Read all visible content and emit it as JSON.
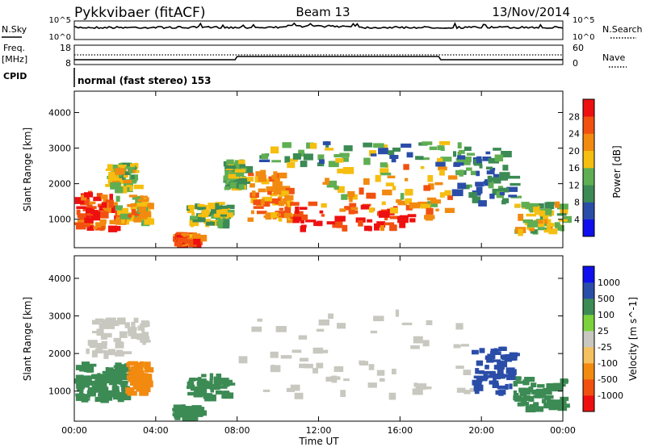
{
  "header": {
    "station": "Pykkvibaer (fitACF)",
    "beam": "Beam 13",
    "date": "13/Nov/2014"
  },
  "noise_panel": {
    "left_label": "N.Sky",
    "left_ticks": [
      "10^5",
      "10^0"
    ],
    "right_label": "N.Search",
    "right_ticks": [
      "10^5",
      "10^0"
    ]
  },
  "freq_panel": {
    "left_label_1": "Freq.",
    "left_label_2": "[MHz]",
    "left_ticks": [
      "18",
      "8"
    ],
    "right_label": "Nave",
    "right_ticks": [
      "60",
      "0"
    ]
  },
  "cpid": {
    "label": "CPID",
    "text": "normal (fast stereo) 153"
  },
  "x_axis": {
    "ticks": [
      "00:00",
      "04:00",
      "08:00",
      "12:00",
      "16:00",
      "20:00",
      "00:00"
    ],
    "label": "Time UT"
  },
  "colors": {
    "power_scale": [
      "#1010ee",
      "#2a4da8",
      "#3c8a54",
      "#5fae52",
      "#f5be10",
      "#f28a10",
      "#f25010",
      "#ee1010"
    ],
    "velocity_scale": [
      "#ee1010",
      "#f25010",
      "#f28a10",
      "#f5c060",
      "#c8c8c0",
      "#7cd23c",
      "#3c8a54",
      "#2a4da8",
      "#1010ee"
    ]
  },
  "chart_data": [
    {
      "type": "heatmap",
      "title": "Power",
      "xlabel": "",
      "ylabel": "Slant Range [km]",
      "ylim": [
        200,
        4600
      ],
      "y_ticks": [
        "4000",
        "3000",
        "2000",
        "1000"
      ],
      "colorbar": {
        "label": "Power [dB]",
        "tick_labels": [
          "28",
          "24",
          "20",
          "16",
          "12",
          "8",
          "4"
        ],
        "range": [
          0,
          32
        ]
      },
      "regions": [
        {
          "t_start": 0.0,
          "t_end": 2.0,
          "r_min": 800,
          "r_max": 1800,
          "power": 26
        },
        {
          "t_start": 2.0,
          "t_end": 3.5,
          "r_min": 1000,
          "r_max": 1700,
          "power": 20
        },
        {
          "t_start": 1.5,
          "t_end": 3.0,
          "r_min": 1900,
          "r_max": 2600,
          "power": 16
        },
        {
          "t_start": 4.8,
          "t_end": 6.0,
          "r_min": 350,
          "r_max": 650,
          "power": 24
        },
        {
          "t_start": 5.5,
          "t_end": 7.5,
          "r_min": 900,
          "r_max": 1500,
          "power": 14
        },
        {
          "t_start": 7.3,
          "t_end": 8.3,
          "r_min": 1900,
          "r_max": 2700,
          "power": 14
        },
        {
          "t_start": 8.5,
          "t_end": 10.5,
          "r_min": 1000,
          "r_max": 2400,
          "power": 22
        },
        {
          "t_start": 10.5,
          "t_end": 17.5,
          "r_min": 800,
          "r_max": 1500,
          "power": 28
        },
        {
          "t_start": 12.0,
          "t_end": 18.5,
          "r_min": 1300,
          "r_max": 2600,
          "power": 20
        },
        {
          "t_start": 9.0,
          "t_end": 19.0,
          "r_min": 2600,
          "r_max": 3200,
          "power": 12
        },
        {
          "t_start": 18.5,
          "t_end": 21.5,
          "r_min": 1500,
          "r_max": 3100,
          "power": 10
        },
        {
          "t_start": 21.5,
          "t_end": 24.0,
          "r_min": 700,
          "r_max": 1500,
          "power": 16
        }
      ]
    },
    {
      "type": "heatmap",
      "title": "Velocity",
      "xlabel": "Time UT",
      "ylabel": "Slant Range [km]",
      "ylim": [
        200,
        4600
      ],
      "y_ticks": [
        "4000",
        "3000",
        "2000",
        "1000"
      ],
      "colorbar": {
        "label": "Velocity [m s^-1]",
        "tick_labels": [
          "1000",
          "500",
          "100",
          "25",
          "-25",
          "-100",
          "-500",
          "-1000"
        ]
      },
      "regions": [
        {
          "t_start": 0.0,
          "t_end": 1.5,
          "r_min": 800,
          "r_max": 1800,
          "velocity": 120
        },
        {
          "t_start": 1.5,
          "t_end": 2.5,
          "r_min": 900,
          "r_max": 1800,
          "velocity": 300
        },
        {
          "t_start": 2.5,
          "t_end": 3.5,
          "r_min": 1000,
          "r_max": 1800,
          "velocity": -150
        },
        {
          "t_start": 0.5,
          "t_end": 3.5,
          "r_min": 2000,
          "r_max": 3000,
          "velocity": 0
        },
        {
          "t_start": 4.8,
          "t_end": 6.0,
          "r_min": 350,
          "r_max": 650,
          "velocity": 120
        },
        {
          "t_start": 5.5,
          "t_end": 7.5,
          "r_min": 900,
          "r_max": 1500,
          "velocity": 120
        },
        {
          "t_start": 8.0,
          "t_end": 19.5,
          "r_min": 900,
          "r_max": 3200,
          "velocity": 0
        },
        {
          "t_start": 19.5,
          "t_end": 21.5,
          "r_min": 1000,
          "r_max": 2200,
          "velocity": 600
        },
        {
          "t_start": 21.5,
          "t_end": 24.0,
          "r_min": 600,
          "r_max": 1400,
          "velocity": 150
        }
      ]
    }
  ]
}
